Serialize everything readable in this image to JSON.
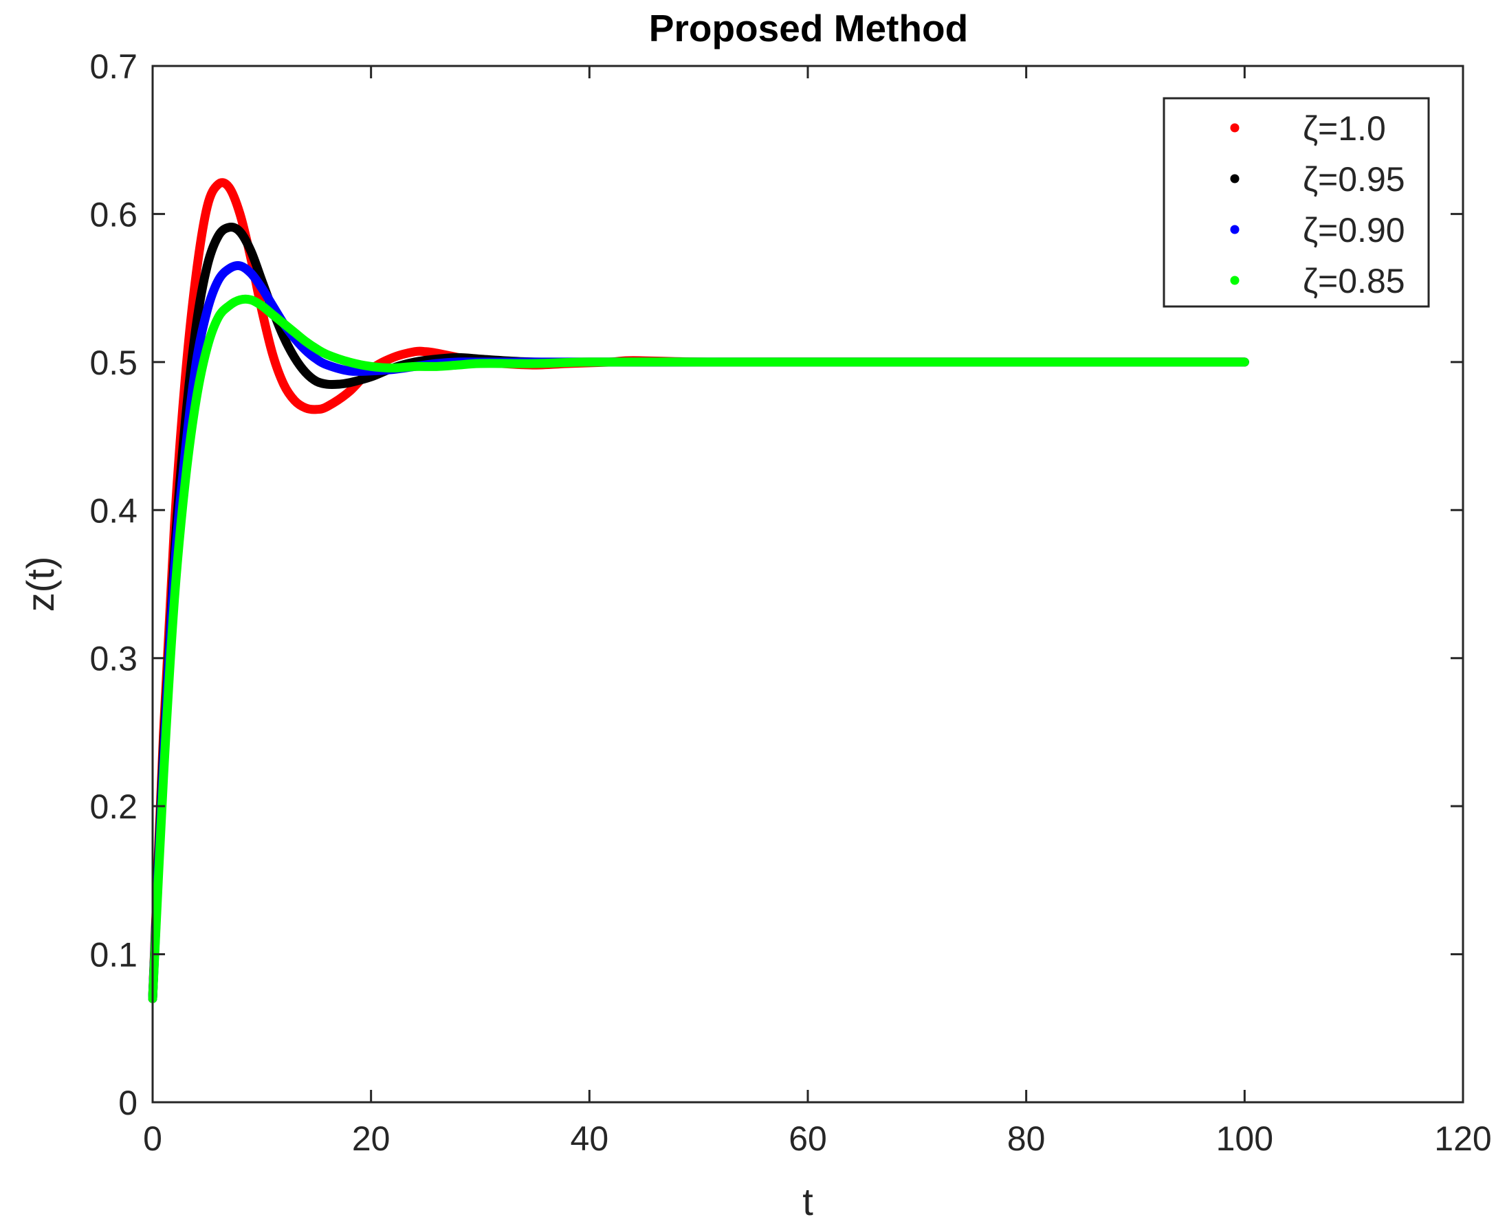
{
  "chart_data": {
    "type": "line",
    "title": "Proposed Method",
    "xlabel": "t",
    "ylabel": "z(t)",
    "xlim": [
      0,
      120
    ],
    "ylim": [
      0,
      0.7
    ],
    "xticks": [
      0,
      20,
      40,
      60,
      80,
      100,
      120
    ],
    "xtick_labels": [
      "0",
      "20",
      "40",
      "60",
      "80",
      "100",
      "120"
    ],
    "yticks": [
      0,
      0.1,
      0.2,
      0.3,
      0.4,
      0.5,
      0.6,
      0.7
    ],
    "ytick_labels": [
      "0",
      "0.1",
      "0.2",
      "0.3",
      "0.4",
      "0.5",
      "0.6",
      "0.7"
    ],
    "grid": false,
    "legend_position": "top-right",
    "series": [
      {
        "name": "ζ=1.0",
        "color": "#ff0000",
        "x": [
          0,
          1,
          2,
          3,
          4,
          5,
          6,
          7,
          8,
          9,
          10,
          11,
          12,
          13,
          14,
          15,
          16,
          18,
          20,
          22,
          24,
          25,
          26,
          28,
          30,
          32,
          35,
          38,
          42,
          44,
          50,
          60,
          80,
          100
        ],
        "y": [
          0.07,
          0.25,
          0.39,
          0.49,
          0.56,
          0.605,
          0.62,
          0.618,
          0.6,
          0.57,
          0.535,
          0.505,
          0.485,
          0.474,
          0.469,
          0.468,
          0.47,
          0.48,
          0.495,
          0.503,
          0.507,
          0.507,
          0.506,
          0.503,
          0.5,
          0.499,
          0.498,
          0.499,
          0.5,
          0.501,
          0.5,
          0.5,
          0.5,
          0.5
        ]
      },
      {
        "name": "ζ=0.95",
        "color": "#000000",
        "x": [
          0,
          1,
          2,
          3,
          4,
          5,
          6,
          7,
          8,
          9,
          10,
          11,
          12,
          13,
          14,
          15,
          16,
          17,
          18,
          20,
          22,
          24,
          26,
          28,
          30,
          32,
          35,
          40,
          50,
          60,
          80,
          100
        ],
        "y": [
          0.07,
          0.24,
          0.37,
          0.46,
          0.525,
          0.565,
          0.585,
          0.591,
          0.588,
          0.575,
          0.555,
          0.535,
          0.517,
          0.503,
          0.493,
          0.487,
          0.485,
          0.485,
          0.486,
          0.49,
          0.496,
          0.5,
          0.502,
          0.503,
          0.502,
          0.501,
          0.5,
          0.5,
          0.5,
          0.5,
          0.5,
          0.5
        ]
      },
      {
        "name": "ζ=0.90",
        "color": "#0000ff",
        "x": [
          0,
          1,
          2,
          3,
          4,
          5,
          6,
          7,
          8,
          9,
          10,
          11,
          12,
          13,
          14,
          15,
          16,
          18,
          20,
          22,
          24,
          26,
          28,
          30,
          35,
          40,
          50,
          60,
          80,
          100
        ],
        "y": [
          0.07,
          0.23,
          0.36,
          0.44,
          0.5,
          0.535,
          0.555,
          0.563,
          0.565,
          0.56,
          0.55,
          0.538,
          0.526,
          0.516,
          0.508,
          0.502,
          0.498,
          0.494,
          0.494,
          0.495,
          0.497,
          0.499,
          0.5,
          0.5,
          0.5,
          0.5,
          0.5,
          0.5,
          0.5,
          0.5
        ]
      },
      {
        "name": "ζ=0.85",
        "color": "#00ff00",
        "x": [
          0,
          1,
          2,
          3,
          4,
          5,
          6,
          7,
          8,
          9,
          10,
          11,
          12,
          13,
          14,
          15,
          16,
          18,
          20,
          22,
          24,
          26,
          28,
          30,
          35,
          40,
          50,
          60,
          80,
          100
        ],
        "y": [
          0.07,
          0.22,
          0.34,
          0.42,
          0.475,
          0.51,
          0.53,
          0.538,
          0.542,
          0.542,
          0.538,
          0.532,
          0.526,
          0.52,
          0.514,
          0.509,
          0.505,
          0.5,
          0.497,
          0.496,
          0.497,
          0.497,
          0.498,
          0.499,
          0.499,
          0.5,
          0.5,
          0.5,
          0.5,
          0.5
        ]
      }
    ]
  }
}
